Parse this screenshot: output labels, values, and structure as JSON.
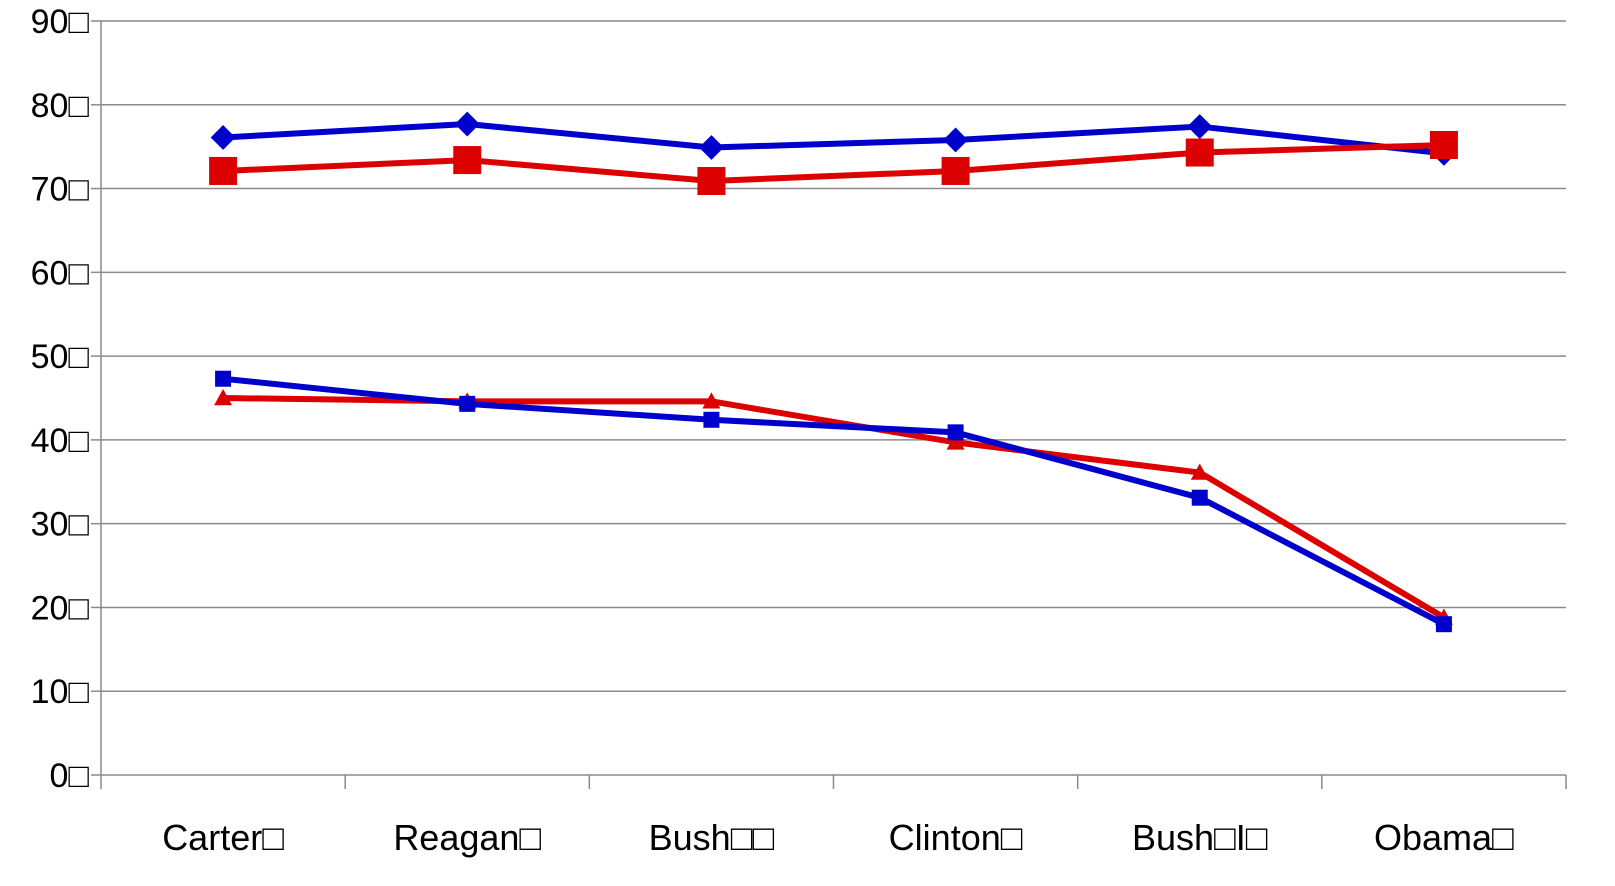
{
  "chart_data": {
    "type": "line",
    "title": "",
    "xlabel": "",
    "ylabel": "",
    "categories": [
      "Carter□",
      "Reagan□",
      "Bush□□",
      "Clinton□",
      "Bush□I□",
      "Obama□"
    ],
    "y_tick_labels": [
      "0□",
      "10□",
      "20□",
      "30□",
      "40□",
      "50□",
      "60□",
      "70□",
      "80□",
      "90□"
    ],
    "ylim": [
      0,
      90
    ],
    "y_step": 10,
    "grid": true,
    "legend": "none",
    "series": [
      {
        "color": "#0000CC",
        "marker": "diamond",
        "values": [
          76.1,
          77.7,
          74.9,
          75.8,
          77.4,
          74.2
        ]
      },
      {
        "color": "#DD0000",
        "marker": "square-large",
        "values": [
          72.1,
          73.4,
          70.9,
          72.1,
          74.3,
          75.2
        ]
      },
      {
        "color": "#DD0000",
        "marker": "triangle",
        "values": [
          45.0,
          44.6,
          44.6,
          39.7,
          36.1,
          18.8
        ]
      },
      {
        "color": "#0000CC",
        "marker": "square",
        "values": [
          47.3,
          44.3,
          42.4,
          40.9,
          33.1,
          18.0
        ]
      }
    ]
  }
}
